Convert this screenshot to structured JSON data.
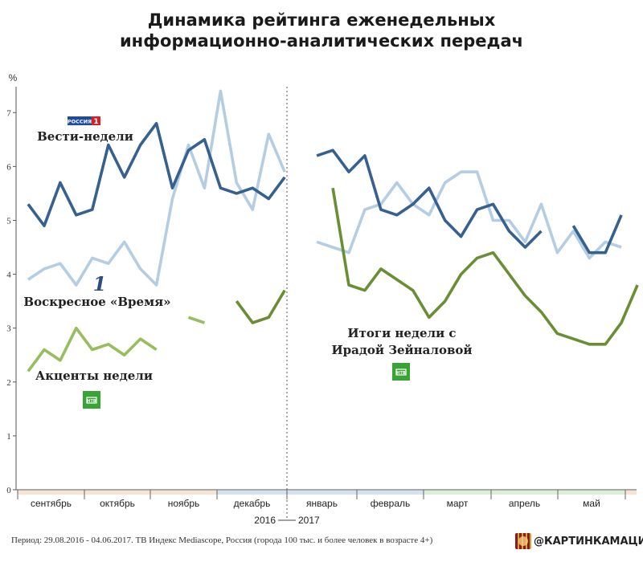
{
  "title": {
    "line1": "Динамика рейтинга еженедельных",
    "line2": "информационно-аналитических передач"
  },
  "chart_data": {
    "type": "line",
    "y_unit": "%",
    "ylim": [
      0,
      7.6
    ],
    "yticks": [
      0,
      1,
      2,
      3,
      4,
      5,
      6,
      7
    ],
    "months": [
      {
        "label": "сентябрь",
        "color": "#f7e2d3"
      },
      {
        "label": "октябрь",
        "color": "#f7e2d3"
      },
      {
        "label": "ноябрь",
        "color": "#f7e2d3"
      },
      {
        "label": "декабрь",
        "color": "#d6e0f5"
      },
      {
        "label": "январь",
        "color": "#d6e0f5"
      },
      {
        "label": "февраль",
        "color": "#d6e0f5"
      },
      {
        "label": "март",
        "color": "#dcefd6"
      },
      {
        "label": "апрель",
        "color": "#dcefd6"
      },
      {
        "label": "май",
        "color": "#dcefd6"
      },
      {
        "label": "",
        "color": "#f7e2d3"
      }
    ],
    "year_labels": {
      "left": "2016",
      "right": "2017"
    },
    "series": [
      {
        "name": "Вести-недели",
        "color": "#36608f",
        "segments": [
          [
            [
              1,
              5.3
            ],
            [
              2,
              4.9
            ],
            [
              3,
              5.7
            ],
            [
              4,
              5.1
            ],
            [
              5,
              5.2
            ],
            [
              6,
              6.4
            ],
            [
              7,
              5.8
            ],
            [
              8,
              6.4
            ],
            [
              9,
              6.8
            ],
            [
              10,
              5.6
            ],
            [
              11,
              6.3
            ],
            [
              12,
              6.5
            ],
            [
              13,
              5.6
            ],
            [
              14,
              5.5
            ],
            [
              15,
              5.6
            ],
            [
              16,
              5.4
            ],
            [
              17,
              5.8
            ]
          ],
          [
            [
              19,
              6.2
            ],
            [
              20,
              6.3
            ],
            [
              21,
              5.9
            ],
            [
              22,
              6.2
            ],
            [
              23,
              5.2
            ],
            [
              24,
              5.1
            ],
            [
              25,
              5.3
            ],
            [
              26,
              5.6
            ],
            [
              27,
              5.0
            ],
            [
              28,
              4.7
            ],
            [
              29,
              5.2
            ],
            [
              30,
              5.3
            ],
            [
              31,
              4.8
            ],
            [
              32,
              4.5
            ],
            [
              33,
              4.8
            ]
          ],
          [
            [
              35,
              4.9
            ],
            [
              36,
              4.4
            ],
            [
              37,
              4.4
            ],
            [
              38,
              5.1
            ]
          ]
        ]
      },
      {
        "name": "Воскресное «Время»",
        "color": "#b4cde3",
        "segments": [
          [
            [
              1,
              3.9
            ],
            [
              2,
              4.1
            ],
            [
              3,
              4.2
            ],
            [
              4,
              3.8
            ],
            [
              5,
              4.3
            ],
            [
              6,
              4.2
            ],
            [
              7,
              4.6
            ],
            [
              8,
              4.1
            ],
            [
              9,
              3.8
            ],
            [
              10,
              5.4
            ],
            [
              11,
              6.4
            ],
            [
              12,
              5.6
            ],
            [
              13,
              7.4
            ],
            [
              14,
              5.7
            ],
            [
              15,
              5.2
            ],
            [
              16,
              6.6
            ],
            [
              17,
              5.9
            ]
          ],
          [
            [
              19,
              4.6
            ],
            [
              20,
              4.5
            ],
            [
              21,
              4.4
            ],
            [
              22,
              5.2
            ],
            [
              23,
              5.3
            ],
            [
              24,
              5.7
            ],
            [
              25,
              5.3
            ],
            [
              26,
              5.1
            ],
            [
              27,
              5.7
            ],
            [
              28,
              5.9
            ],
            [
              29,
              5.9
            ],
            [
              30,
              5.0
            ],
            [
              31,
              5.0
            ],
            [
              32,
              4.6
            ],
            [
              33,
              5.3
            ],
            [
              34,
              4.4
            ],
            [
              35,
              4.8
            ],
            [
              36,
              4.3
            ],
            [
              37,
              4.6
            ],
            [
              38,
              4.5
            ]
          ]
        ]
      },
      {
        "name": "Акценты недели",
        "color": "#98bd5e",
        "segments": [
          [
            [
              1,
              2.2
            ],
            [
              2,
              2.6
            ],
            [
              3,
              2.4
            ],
            [
              4,
              3.0
            ],
            [
              5,
              2.6
            ],
            [
              6,
              2.7
            ],
            [
              7,
              2.5
            ],
            [
              8,
              2.8
            ],
            [
              9,
              2.6
            ]
          ],
          [
            [
              11,
              3.2
            ],
            [
              12,
              3.1
            ]
          ]
        ]
      },
      {
        "name": "Итоги недели с Ирадой Зейналовой",
        "color": "#6a8e33",
        "segments": [
          [
            [
              14,
              3.5
            ],
            [
              15,
              3.1
            ],
            [
              16,
              3.2
            ],
            [
              17,
              3.7
            ]
          ],
          [
            [
              20,
              5.6
            ],
            [
              21,
              3.8
            ],
            [
              22,
              3.7
            ],
            [
              23,
              4.1
            ],
            [
              24,
              3.9
            ],
            [
              25,
              3.7
            ],
            [
              26,
              3.2
            ],
            [
              27,
              3.5
            ],
            [
              28,
              4.0
            ],
            [
              29,
              4.3
            ],
            [
              30,
              4.4
            ],
            [
              31,
              4.0
            ],
            [
              32,
              3.6
            ],
            [
              33,
              3.3
            ],
            [
              34,
              2.9
            ],
            [
              35,
              2.8
            ],
            [
              36,
              2.7
            ],
            [
              37,
              2.7
            ],
            [
              38,
              3.1
            ],
            [
              39,
              3.8
            ]
          ]
        ]
      }
    ],
    "labels": {
      "vesti": "Вести-недели",
      "vremya": "Воскресное «Время»",
      "akcenty": "Акценты недели",
      "itogi_line1": "Итоги недели с",
      "itogi_line2": "Ирадой Зейналовой"
    },
    "logos": {
      "russia1": "РОССИЯ",
      "russia1_num": "1",
      "perviy": "1",
      "ntv": "НТВ"
    }
  },
  "footer": {
    "note": "Период: 29.08.2016 - 04.06.2017. ТВ Индекс Mediascope, Россия (города 100 тыс. и более человек в возрасте 4+)",
    "brand": "@КАРТИНКАМАЦИЯ"
  }
}
